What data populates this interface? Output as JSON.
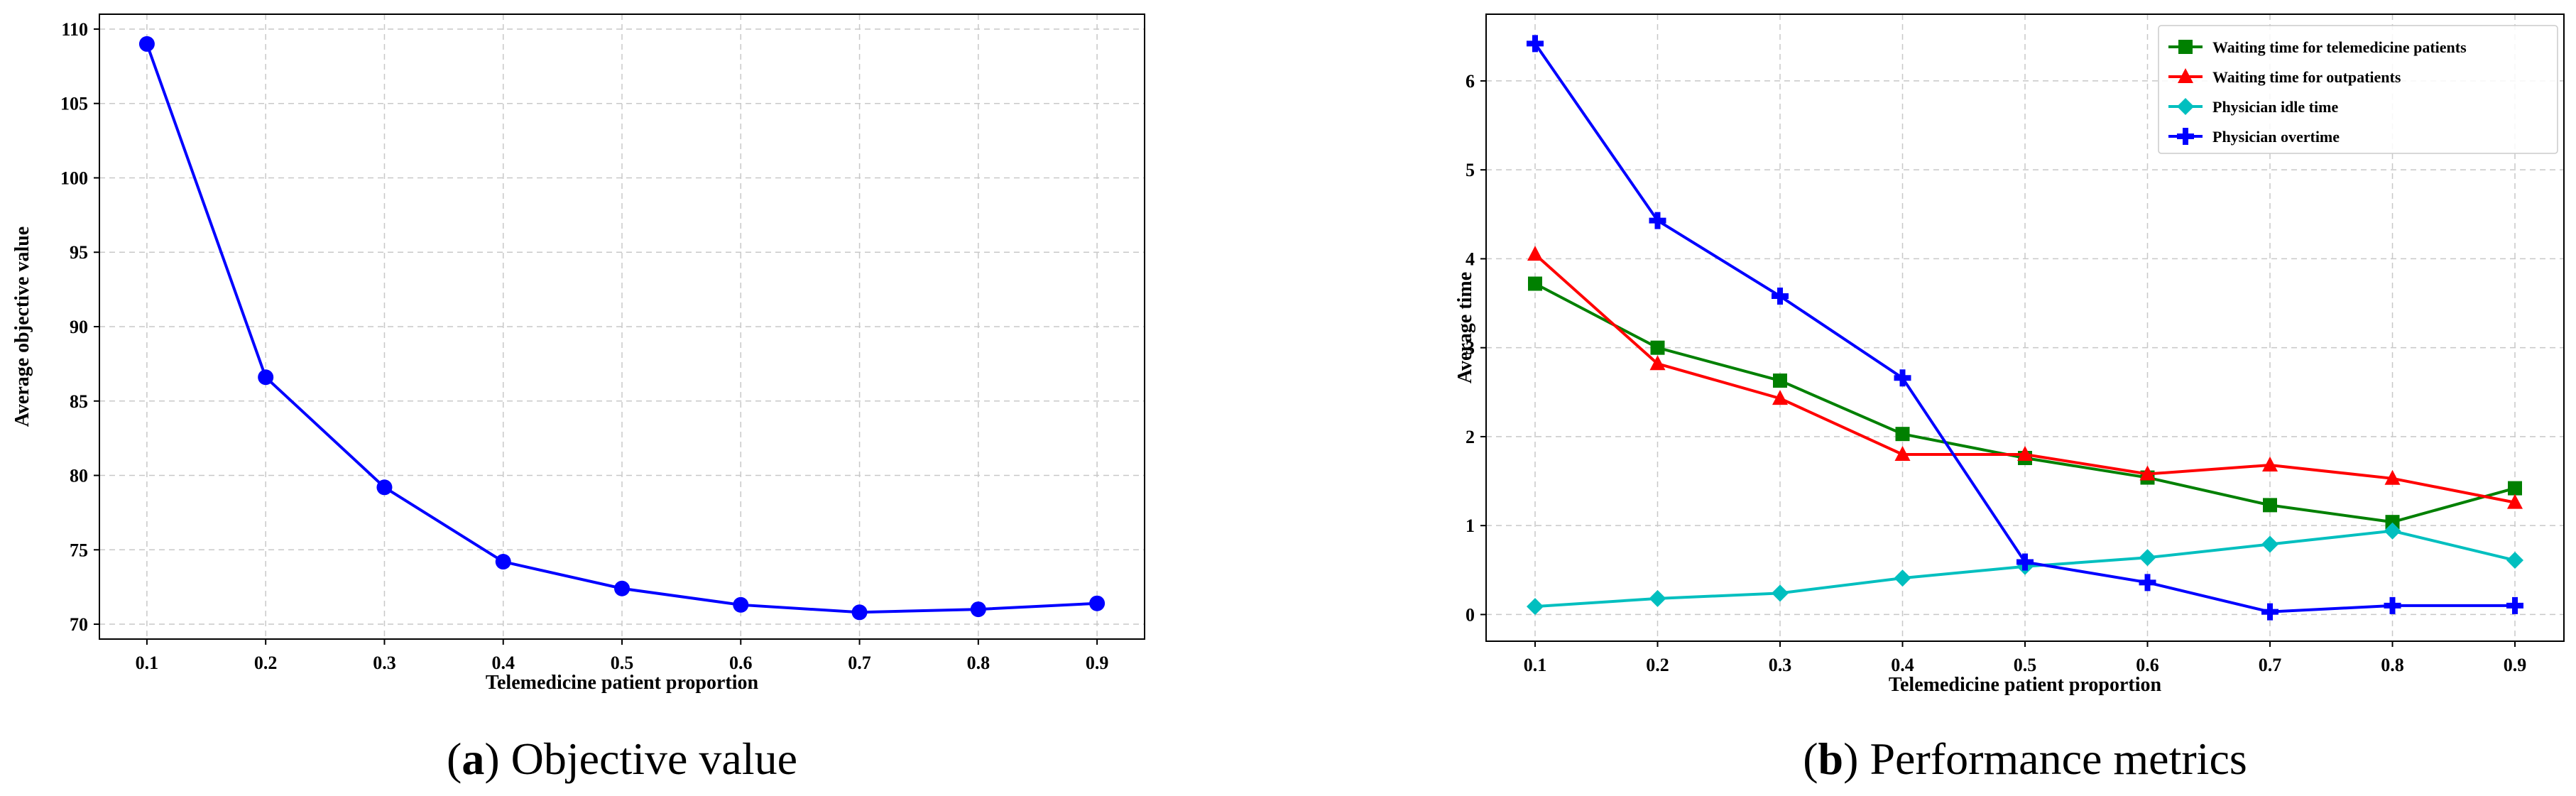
{
  "chart_data": [
    {
      "type": "line",
      "caption": {
        "letter": "a",
        "text": "Objective value"
      },
      "xlabel": "Telemedicine patient proportion",
      "ylabel": "Average objective value",
      "x": [
        0.1,
        0.2,
        0.3,
        0.4,
        0.5,
        0.6,
        0.7,
        0.8,
        0.9
      ],
      "x_ticks": [
        "0.1",
        "0.2",
        "0.3",
        "0.4",
        "0.5",
        "0.6",
        "0.7",
        "0.8",
        "0.9"
      ],
      "xlim": [
        0.06,
        0.94
      ],
      "ylim": [
        69,
        111
      ],
      "y_ticks": [
        70,
        75,
        80,
        85,
        90,
        95,
        100,
        105,
        110
      ],
      "grid": true,
      "series": [
        {
          "values": [
            109.0,
            86.6,
            79.2,
            74.2,
            72.4,
            71.3,
            70.8,
            71.0,
            71.4
          ],
          "color": "#0000ff",
          "marker": "circle"
        }
      ]
    },
    {
      "type": "line",
      "caption": {
        "letter": "b",
        "text": "Performance metrics"
      },
      "xlabel": "Telemedicine patient proportion",
      "ylabel": "Average time",
      "x": [
        0.1,
        0.2,
        0.3,
        0.4,
        0.5,
        0.6,
        0.7,
        0.8,
        0.9
      ],
      "x_ticks": [
        "0.1",
        "0.2",
        "0.3",
        "0.4",
        "0.5",
        "0.6",
        "0.7",
        "0.8",
        "0.9"
      ],
      "xlim": [
        0.06,
        0.94
      ],
      "ylim": [
        -0.3,
        6.75
      ],
      "y_ticks": [
        0,
        1,
        2,
        3,
        4,
        5,
        6
      ],
      "grid": true,
      "legend": "top-right",
      "series": [
        {
          "name": "Waiting time for telemedicine patients",
          "values": [
            3.72,
            3.0,
            2.63,
            2.03,
            1.76,
            1.54,
            1.23,
            1.04,
            1.42
          ],
          "color": "#008000",
          "marker": "square"
        },
        {
          "name": "Waiting time for outpatients",
          "values": [
            4.05,
            2.82,
            2.43,
            1.8,
            1.8,
            1.58,
            1.68,
            1.53,
            1.26
          ],
          "color": "#ff0000",
          "marker": "triangle"
        },
        {
          "name": "Physician idle time",
          "values": [
            0.09,
            0.18,
            0.24,
            0.41,
            0.54,
            0.64,
            0.79,
            0.94,
            0.61
          ],
          "color": "#00bfbf",
          "marker": "diamond"
        },
        {
          "name": "Physician overtime",
          "values": [
            6.42,
            4.43,
            3.58,
            2.66,
            0.59,
            0.36,
            0.03,
            0.1,
            0.1
          ],
          "color": "#0000ff",
          "marker": "plus"
        }
      ]
    }
  ]
}
